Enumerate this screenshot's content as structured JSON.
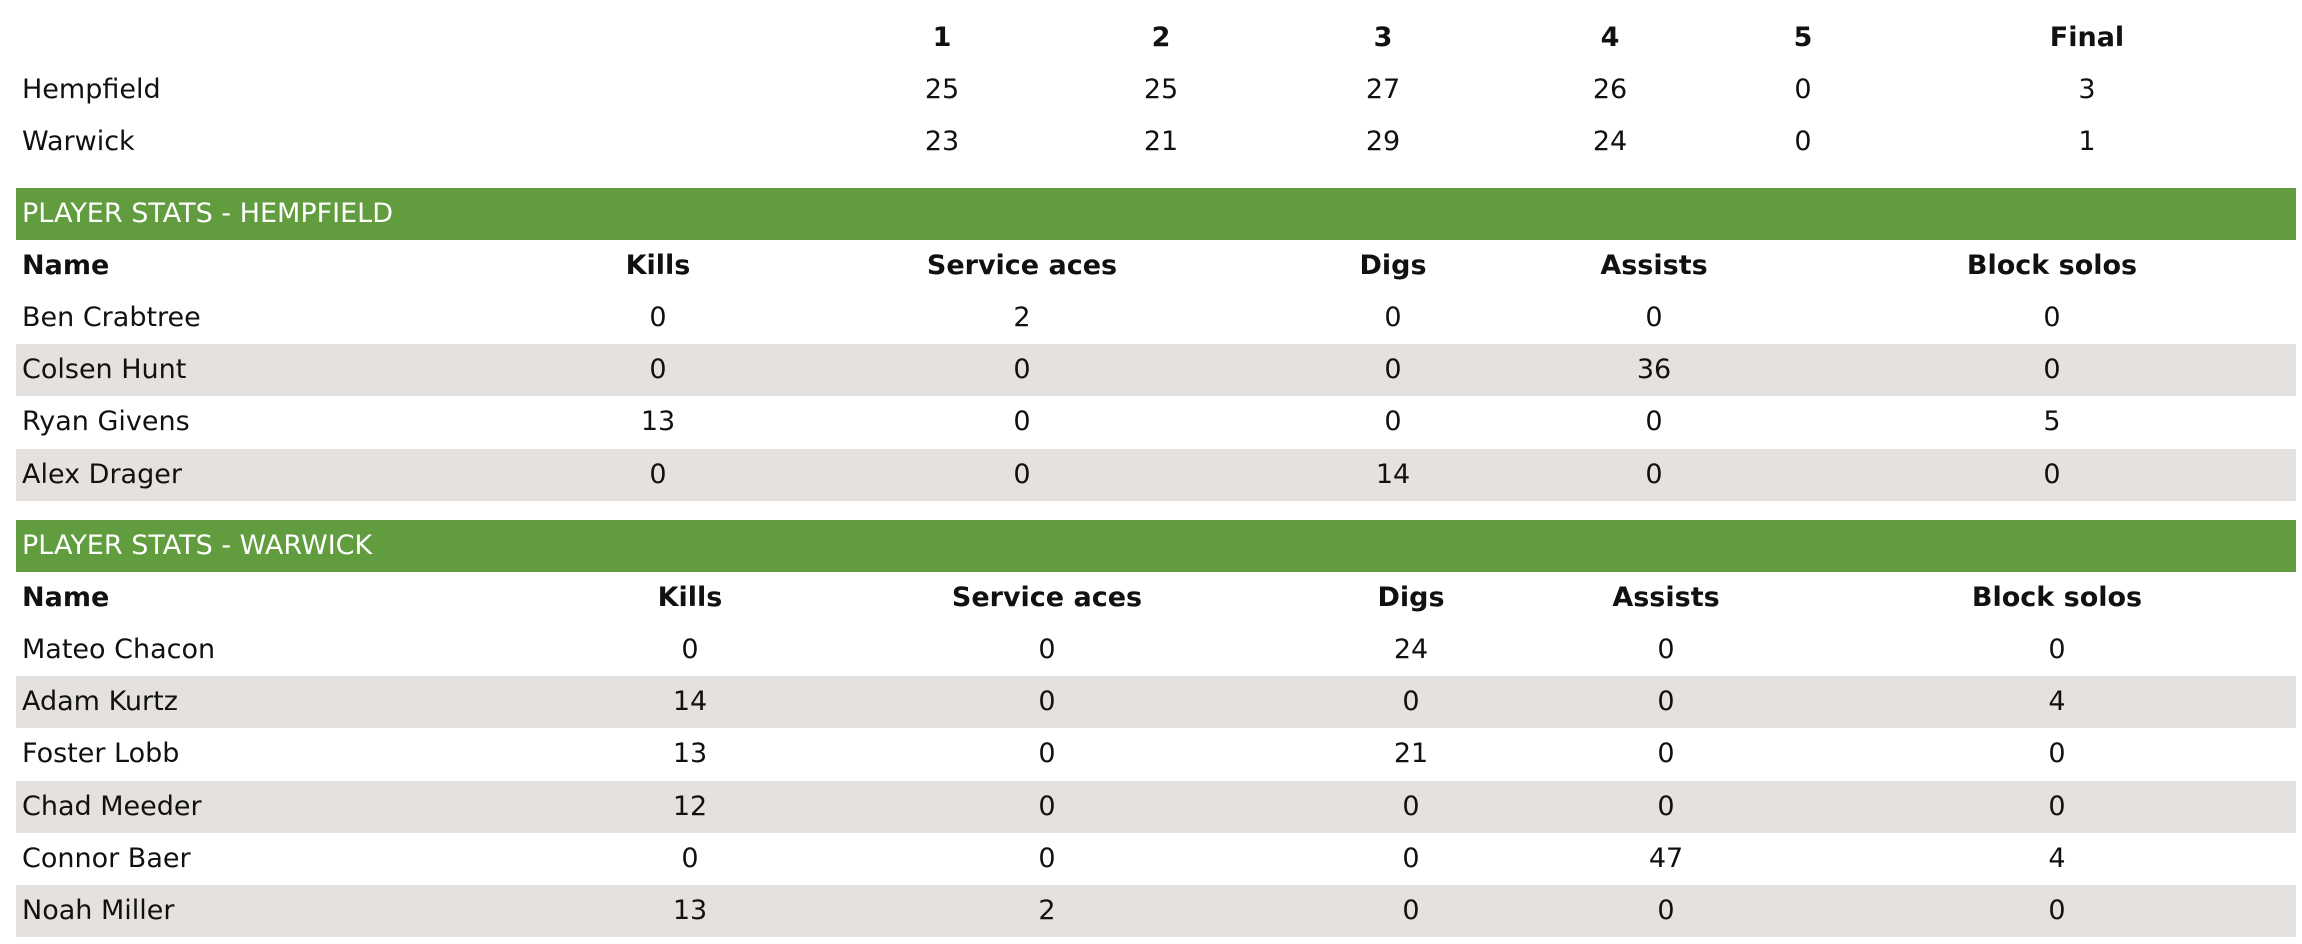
{
  "scoreboard": {
    "headers": [
      "1",
      "2",
      "3",
      "4",
      "5",
      "Final"
    ],
    "rows": [
      {
        "team": "Hempfield",
        "scores": [
          25,
          25,
          27,
          26,
          0,
          3
        ]
      },
      {
        "team": "Warwick",
        "scores": [
          23,
          21,
          29,
          24,
          0,
          1
        ]
      }
    ]
  },
  "sections": [
    {
      "title": "PLAYER STATS - HEMPFIELD",
      "headers": [
        "Name",
        "Kills",
        "Service aces",
        "Digs",
        "Assists",
        "Block solos"
      ],
      "rows": [
        [
          "Ben Crabtree",
          0,
          2,
          0,
          0,
          0
        ],
        [
          "Colsen Hunt",
          0,
          0,
          0,
          36,
          0
        ],
        [
          "Ryan Givens",
          13,
          0,
          0,
          0,
          5
        ],
        [
          "Alex Drager",
          0,
          0,
          14,
          0,
          0
        ]
      ]
    },
    {
      "title": "PLAYER STATS - WARWICK",
      "headers": [
        "Name",
        "Kills",
        "Service aces",
        "Digs",
        "Assists",
        "Block solos"
      ],
      "rows": [
        [
          "Mateo Chacon",
          0,
          0,
          24,
          0,
          0
        ],
        [
          "Adam Kurtz",
          14,
          0,
          0,
          0,
          4
        ],
        [
          "Foster Lobb",
          13,
          0,
          21,
          0,
          0
        ],
        [
          "Chad Meeder",
          12,
          0,
          0,
          0,
          0
        ],
        [
          "Connor Baer",
          0,
          0,
          0,
          47,
          4
        ],
        [
          "Noah Miller",
          13,
          2,
          0,
          0,
          0
        ]
      ]
    }
  ]
}
